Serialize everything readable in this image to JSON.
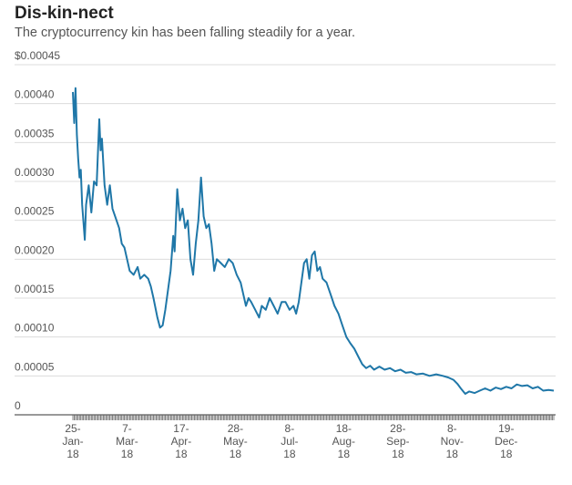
{
  "chart_data": {
    "type": "line",
    "title": "Dis-kin-nect",
    "subtitle": "The cryptocurrency kin has been falling steadily for a year.",
    "xlabel": "",
    "ylabel": "",
    "ylim": [
      0,
      0.00045
    ],
    "yticks": [
      0,
      5e-05,
      0.0001,
      0.00015,
      0.0002,
      0.00025,
      0.0003,
      0.00035,
      0.0004,
      0.00045
    ],
    "ytick_labels": [
      "0",
      "0.00005",
      "0.00010",
      "0.00015",
      "0.00020",
      "0.00025",
      "0.00030",
      "0.00035",
      "0.00040",
      "$0.00045"
    ],
    "xlim": [
      "2018-01-25",
      "2019-01-24"
    ],
    "xticks": [
      {
        "date": "2018-01-25",
        "day": "25-",
        "month": "Jan-",
        "year": "18"
      },
      {
        "date": "2018-03-07",
        "day": "7-",
        "month": "Mar-",
        "year": "18"
      },
      {
        "date": "2018-04-17",
        "day": "17-",
        "month": "Apr-",
        "year": "18"
      },
      {
        "date": "2018-05-28",
        "day": "28-",
        "month": "May-",
        "year": "18"
      },
      {
        "date": "2018-07-08",
        "day": "8-",
        "month": "Jul-",
        "year": "18"
      },
      {
        "date": "2018-08-18",
        "day": "18-",
        "month": "Aug-",
        "year": "18"
      },
      {
        "date": "2018-09-28",
        "day": "28-",
        "month": "Sep-",
        "year": "18"
      },
      {
        "date": "2018-11-08",
        "day": "8-",
        "month": "Nov-",
        "year": "18"
      },
      {
        "date": "2018-12-19",
        "day": "19-",
        "month": "Dec-",
        "year": "18"
      }
    ],
    "grid": true,
    "line_color": "#1f77a8",
    "series": [
      {
        "name": "",
        "points": [
          [
            "2018-01-25",
            0.000415
          ],
          [
            "2018-01-26",
            0.000375
          ],
          [
            "2018-01-27",
            0.00042
          ],
          [
            "2018-01-28",
            0.00036
          ],
          [
            "2018-01-29",
            0.00033
          ],
          [
            "2018-01-30",
            0.000305
          ],
          [
            "2018-01-31",
            0.000315
          ],
          [
            "2018-02-01",
            0.00027
          ],
          [
            "2018-02-03",
            0.000225
          ],
          [
            "2018-02-04",
            0.00027
          ],
          [
            "2018-02-06",
            0.000295
          ],
          [
            "2018-02-08",
            0.00026
          ],
          [
            "2018-02-10",
            0.0003
          ],
          [
            "2018-02-12",
            0.000295
          ],
          [
            "2018-02-14",
            0.00038
          ],
          [
            "2018-02-15",
            0.00034
          ],
          [
            "2018-02-16",
            0.000355
          ],
          [
            "2018-02-18",
            0.000295
          ],
          [
            "2018-02-20",
            0.00027
          ],
          [
            "2018-02-22",
            0.000295
          ],
          [
            "2018-02-24",
            0.000265
          ],
          [
            "2018-02-27",
            0.00025
          ],
          [
            "2018-03-01",
            0.00024
          ],
          [
            "2018-03-03",
            0.00022
          ],
          [
            "2018-03-05",
            0.000215
          ],
          [
            "2018-03-07",
            0.0002
          ],
          [
            "2018-03-09",
            0.000185
          ],
          [
            "2018-03-12",
            0.00018
          ],
          [
            "2018-03-15",
            0.00019
          ],
          [
            "2018-03-17",
            0.000175
          ],
          [
            "2018-03-20",
            0.00018
          ],
          [
            "2018-03-23",
            0.000175
          ],
          [
            "2018-03-25",
            0.000165
          ],
          [
            "2018-03-27",
            0.00015
          ],
          [
            "2018-03-30",
            0.000125
          ],
          [
            "2018-04-01",
            0.000112
          ],
          [
            "2018-04-03",
            0.000115
          ],
          [
            "2018-04-05",
            0.000135
          ],
          [
            "2018-04-07",
            0.00016
          ],
          [
            "2018-04-09",
            0.000185
          ],
          [
            "2018-04-11",
            0.00023
          ],
          [
            "2018-04-12",
            0.00021
          ],
          [
            "2018-04-14",
            0.00029
          ],
          [
            "2018-04-16",
            0.00025
          ],
          [
            "2018-04-18",
            0.000265
          ],
          [
            "2018-04-20",
            0.00024
          ],
          [
            "2018-04-22",
            0.00025
          ],
          [
            "2018-04-24",
            0.0002
          ],
          [
            "2018-04-26",
            0.00018
          ],
          [
            "2018-04-28",
            0.00022
          ],
          [
            "2018-04-30",
            0.00025
          ],
          [
            "2018-05-02",
            0.000305
          ],
          [
            "2018-05-04",
            0.000255
          ],
          [
            "2018-05-06",
            0.00024
          ],
          [
            "2018-05-08",
            0.000245
          ],
          [
            "2018-05-10",
            0.00022
          ],
          [
            "2018-05-12",
            0.000185
          ],
          [
            "2018-05-14",
            0.0002
          ],
          [
            "2018-05-17",
            0.000195
          ],
          [
            "2018-05-20",
            0.00019
          ],
          [
            "2018-05-23",
            0.0002
          ],
          [
            "2018-05-26",
            0.000195
          ],
          [
            "2018-05-29",
            0.00018
          ],
          [
            "2018-06-01",
            0.00017
          ],
          [
            "2018-06-03",
            0.000155
          ],
          [
            "2018-06-05",
            0.00014
          ],
          [
            "2018-06-07",
            0.00015
          ],
          [
            "2018-06-09",
            0.000145
          ],
          [
            "2018-06-12",
            0.000135
          ],
          [
            "2018-06-15",
            0.000125
          ],
          [
            "2018-06-17",
            0.00014
          ],
          [
            "2018-06-20",
            0.000135
          ],
          [
            "2018-06-23",
            0.00015
          ],
          [
            "2018-06-26",
            0.00014
          ],
          [
            "2018-06-29",
            0.00013
          ],
          [
            "2018-07-02",
            0.000145
          ],
          [
            "2018-07-05",
            0.000145
          ],
          [
            "2018-07-08",
            0.000135
          ],
          [
            "2018-07-11",
            0.00014
          ],
          [
            "2018-07-13",
            0.00013
          ],
          [
            "2018-07-15",
            0.000145
          ],
          [
            "2018-07-17",
            0.00017
          ],
          [
            "2018-07-19",
            0.000195
          ],
          [
            "2018-07-21",
            0.0002
          ],
          [
            "2018-07-23",
            0.000175
          ],
          [
            "2018-07-25",
            0.000205
          ],
          [
            "2018-07-27",
            0.00021
          ],
          [
            "2018-07-29",
            0.000185
          ],
          [
            "2018-07-31",
            0.00019
          ],
          [
            "2018-08-02",
            0.000175
          ],
          [
            "2018-08-05",
            0.00017
          ],
          [
            "2018-08-08",
            0.000155
          ],
          [
            "2018-08-11",
            0.00014
          ],
          [
            "2018-08-14",
            0.00013
          ],
          [
            "2018-08-17",
            0.000115
          ],
          [
            "2018-08-20",
            0.0001
          ],
          [
            "2018-08-23",
            9.2e-05
          ],
          [
            "2018-08-26",
            8.5e-05
          ],
          [
            "2018-08-29",
            7.5e-05
          ],
          [
            "2018-09-01",
            6.5e-05
          ],
          [
            "2018-09-04",
            6e-05
          ],
          [
            "2018-09-07",
            6.3e-05
          ],
          [
            "2018-09-10",
            5.8e-05
          ],
          [
            "2018-09-14",
            6.2e-05
          ],
          [
            "2018-09-18",
            5.8e-05
          ],
          [
            "2018-09-22",
            6e-05
          ],
          [
            "2018-09-26",
            5.6e-05
          ],
          [
            "2018-09-30",
            5.8e-05
          ],
          [
            "2018-10-04",
            5.4e-05
          ],
          [
            "2018-10-08",
            5.5e-05
          ],
          [
            "2018-10-12",
            5.2e-05
          ],
          [
            "2018-10-17",
            5.3e-05
          ],
          [
            "2018-10-22",
            5e-05
          ],
          [
            "2018-10-27",
            5.2e-05
          ],
          [
            "2018-11-01",
            5e-05
          ],
          [
            "2018-11-05",
            4.8e-05
          ],
          [
            "2018-11-09",
            4.5e-05
          ],
          [
            "2018-11-12",
            4e-05
          ],
          [
            "2018-11-15",
            3.3e-05
          ],
          [
            "2018-11-18",
            2.7e-05
          ],
          [
            "2018-11-21",
            3e-05
          ],
          [
            "2018-11-25",
            2.8e-05
          ],
          [
            "2018-11-29",
            3.1e-05
          ],
          [
            "2018-12-03",
            3.4e-05
          ],
          [
            "2018-12-07",
            3.1e-05
          ],
          [
            "2018-12-11",
            3.5e-05
          ],
          [
            "2018-12-15",
            3.3e-05
          ],
          [
            "2018-12-19",
            3.6e-05
          ],
          [
            "2018-12-23",
            3.4e-05
          ],
          [
            "2018-12-27",
            3.9e-05
          ],
          [
            "2018-12-31",
            3.7e-05
          ],
          [
            "2019-01-04",
            3.8e-05
          ],
          [
            "2019-01-08",
            3.4e-05
          ],
          [
            "2019-01-12",
            3.6e-05
          ],
          [
            "2019-01-16",
            3.1e-05
          ],
          [
            "2019-01-20",
            3.2e-05
          ],
          [
            "2019-01-24",
            3.1e-05
          ]
        ]
      }
    ]
  }
}
